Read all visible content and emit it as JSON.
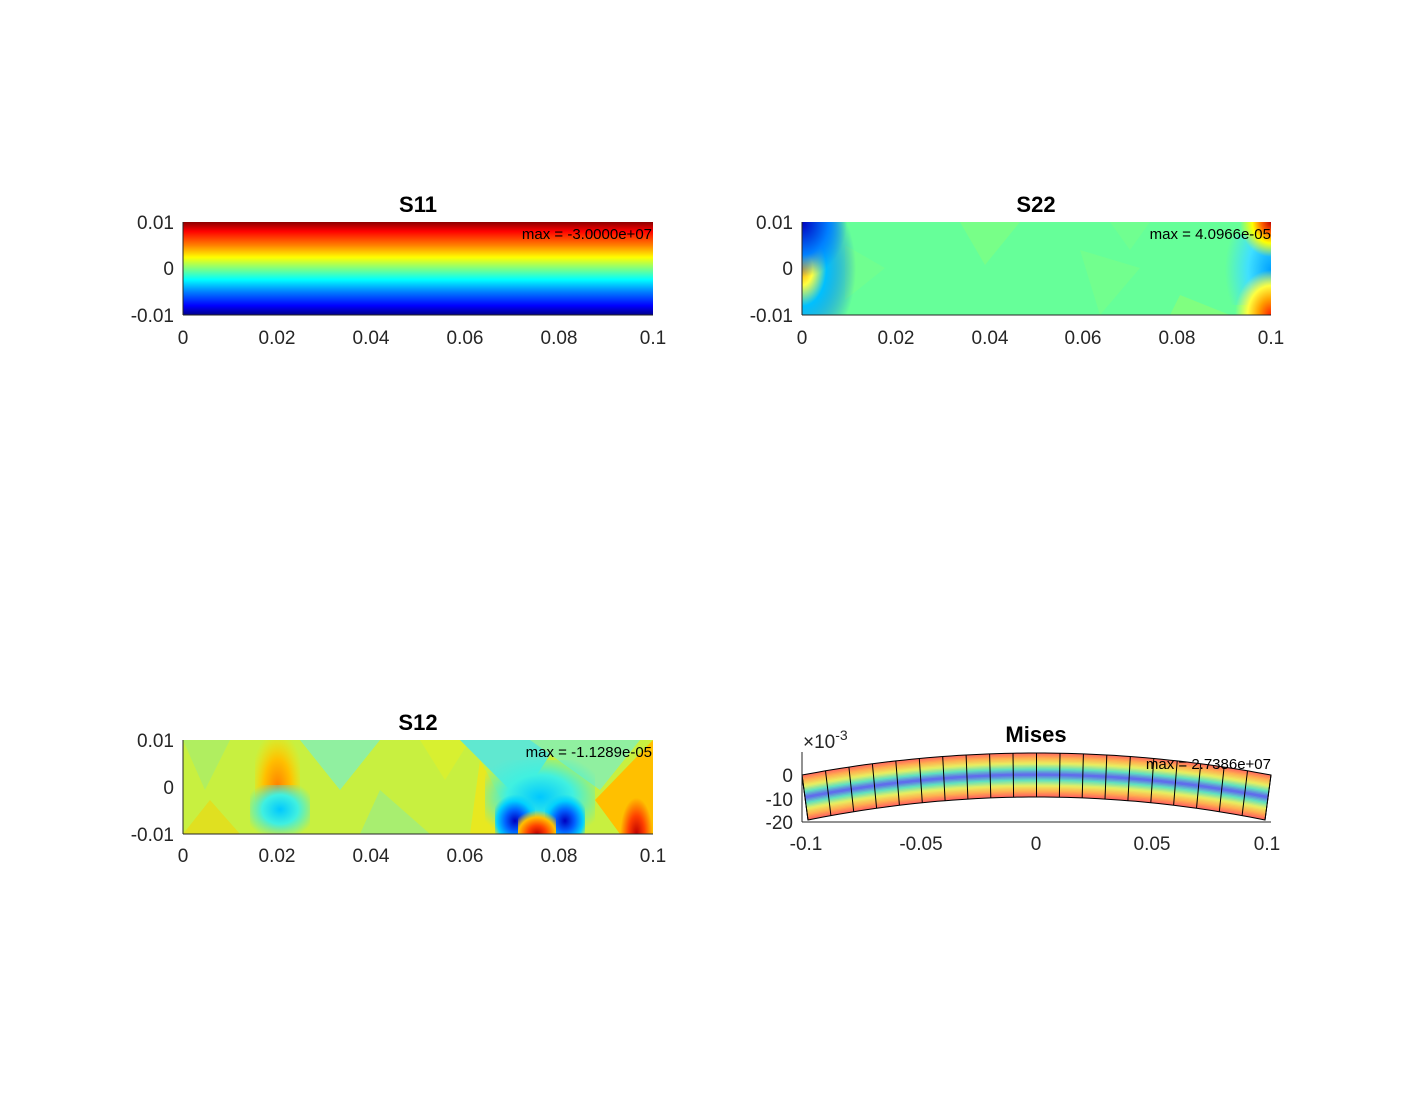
{
  "figure": {
    "background": "#ffffff",
    "colormap": "jet"
  },
  "chart_data": [
    {
      "type": "heatmap",
      "title": "S11",
      "xlim": [
        0,
        0.1
      ],
      "ylim": [
        -0.01,
        0.01
      ],
      "x_ticks": [
        "0",
        "0.02",
        "0.04",
        "0.06",
        "0.08",
        "0.1"
      ],
      "y_ticks": [
        "-0.01",
        "0",
        "0.01"
      ],
      "annotation": "max = -3.0000e+07",
      "field": "linear gradient in y: dark red at top, green at mid, dark blue at bottom"
    },
    {
      "type": "heatmap",
      "title": "S22",
      "xlim": [
        0,
        0.1
      ],
      "ylim": [
        -0.01,
        0.01
      ],
      "x_ticks": [
        "0",
        "0.02",
        "0.04",
        "0.06",
        "0.08",
        "0.1"
      ],
      "y_ticks": [
        "-0.01",
        "0",
        "0.01"
      ],
      "annotation": "max = 4.0966e-05",
      "field": "mostly uniform green, blue/orange concentrations near x=0 and x=0.1 corners"
    },
    {
      "type": "heatmap",
      "title": "S12",
      "xlim": [
        0,
        0.1
      ],
      "ylim": [
        -0.01,
        0.01
      ],
      "x_ticks": [
        "0",
        "0.02",
        "0.04",
        "0.06",
        "0.08",
        "0.1"
      ],
      "y_ticks": [
        "-0.01",
        "0",
        "0.01"
      ],
      "annotation": "max = -1.1289e-05",
      "field": "yellow-green background with blue and red streaks near x=0.07-0.08, orange near x=0.02 and x=0.1"
    },
    {
      "type": "heatmap",
      "title": "Mises",
      "xlim": [
        -0.1,
        0.1
      ],
      "ylim": [
        -20,
        0
      ],
      "y_exponent": "×10^-3",
      "exponent_base": "×10",
      "exponent_power": "-3",
      "x_ticks": [
        "-0.1",
        "-0.05",
        "0",
        "0.05",
        "0.1"
      ],
      "y_ticks": [
        "-20",
        "-10",
        "0"
      ],
      "annotation": "max = 2.7386e+07",
      "field": "deformed curved beam mesh with 20 elements, stress bands red at outer fibers, blue at neutral axis"
    }
  ]
}
